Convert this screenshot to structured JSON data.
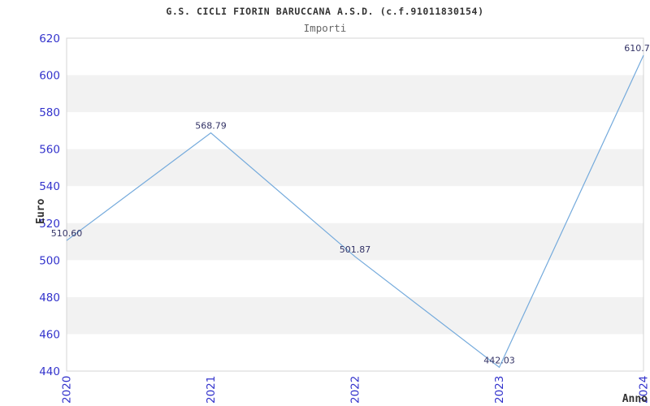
{
  "chart_data": {
    "type": "line",
    "title": "G.S. CICLI FIORIN BARUCCANA A.S.D. (c.f.91011830154)",
    "subtitle": "Importi",
    "xlabel": "Anno",
    "ylabel": "Euro",
    "x_categories": [
      "2020",
      "2021",
      "2022",
      "2023",
      "2024"
    ],
    "series": [
      {
        "name": "Importi",
        "values": [
          510.6,
          568.79,
          501.87,
          442.03,
          610.7
        ]
      }
    ],
    "point_labels": [
      "510.60",
      "568.79",
      "501.87",
      "442.03",
      "610.7"
    ],
    "ylim": [
      440,
      620
    ],
    "ytick_step": 20,
    "yticks": [
      440,
      460,
      480,
      500,
      520,
      540,
      560,
      580,
      600,
      620
    ],
    "grid": "alternating-horizontal-bands",
    "legend": "none",
    "colors": {
      "line": "#74aadc",
      "tick_label": "#3333cc",
      "data_label": "#333366",
      "band": "#f2f2f2",
      "border": "#d4d4d4",
      "axis_title": "#333333"
    }
  }
}
